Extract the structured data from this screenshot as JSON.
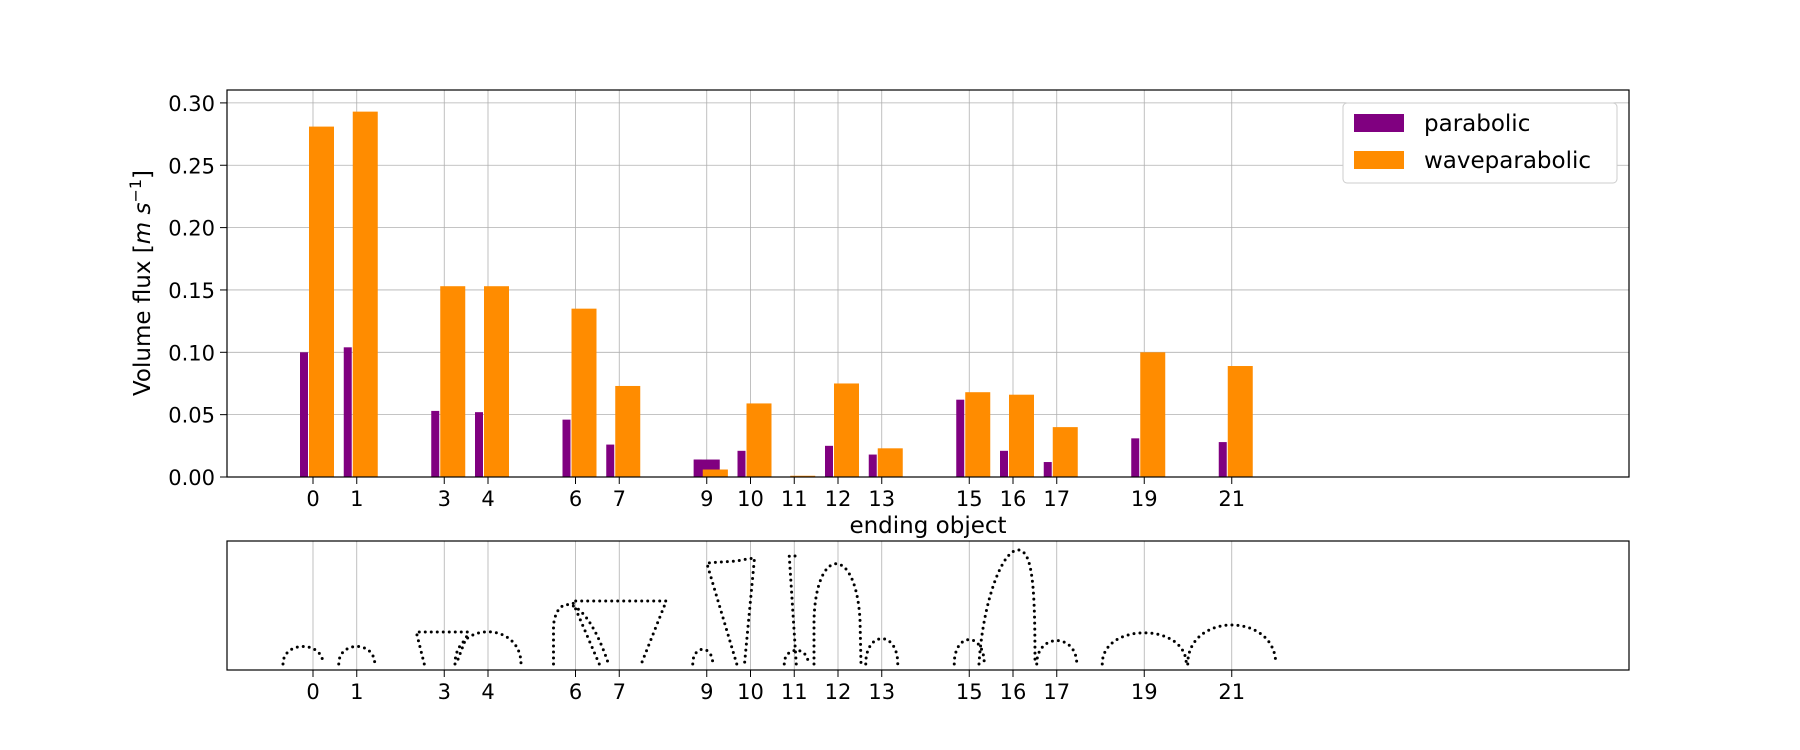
{
  "chart_data": [
    {
      "type": "bar",
      "xlabel": "ending object",
      "ylabel_main": "Volume flux [",
      "ylabel_math_m": "m",
      "ylabel_math_s": "s",
      "ylabel_sup": "−1",
      "ylabel_end": "]",
      "ylim": [
        0,
        0.31
      ],
      "yticks": [
        "0.00",
        "0.05",
        "0.10",
        "0.15",
        "0.20",
        "0.25",
        "0.30"
      ],
      "grid": true,
      "legend_position": "top-right",
      "categories": [
        "0",
        "1",
        "3",
        "4",
        "6",
        "7",
        "9",
        "10",
        "11",
        "12",
        "13",
        "15",
        "16",
        "17",
        "19",
        "21"
      ],
      "x": [
        0,
        1,
        3,
        4,
        6,
        7,
        9,
        10,
        11,
        12,
        13,
        15,
        16,
        17,
        19,
        21
      ],
      "series": [
        {
          "name": "parabolic",
          "color": "#800080",
          "values": [
            0.1,
            0.104,
            0.053,
            0.052,
            0.046,
            0.026,
            0.014,
            0.021,
            0.0,
            0.025,
            0.018,
            0.062,
            0.021,
            0.012,
            0.031,
            0.028
          ]
        },
        {
          "name": "waveparabolic",
          "color": "#ff8c00",
          "values": [
            0.281,
            0.293,
            0.153,
            0.153,
            0.135,
            0.073,
            0.006,
            0.059,
            0.001,
            0.075,
            0.023,
            0.068,
            0.066,
            0.04,
            0.1,
            0.089
          ]
        }
      ]
    },
    {
      "type": "diagram",
      "description_labels": [
        "0",
        "1",
        "3",
        "4",
        "6",
        "7",
        "9",
        "10",
        "11",
        "12",
        "13",
        "15",
        "16",
        "17",
        "19",
        "21"
      ]
    }
  ]
}
